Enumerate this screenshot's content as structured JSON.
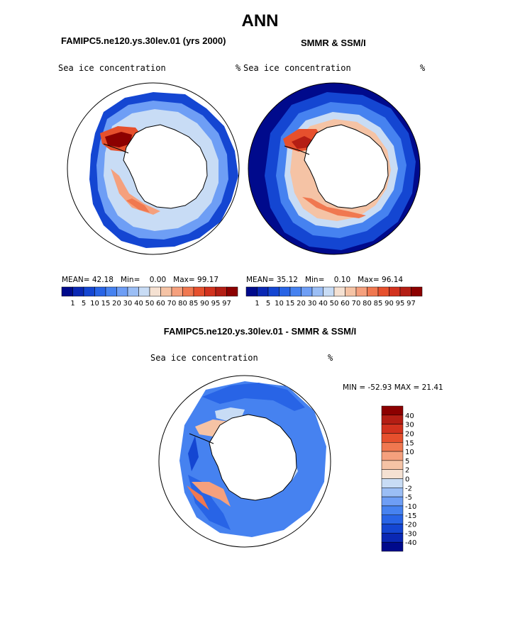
{
  "page": {
    "title": "ANN"
  },
  "panels": [
    {
      "heading": "FAMIPC5.ne120.ys.30lev.01 (yrs 2000)",
      "variable": "Sea ice concentration",
      "units": "%",
      "stats": {
        "mean_label": "MEAN=",
        "mean": "42.18",
        "min_label": "Min=",
        "min": "0.00",
        "max_label": "Max=",
        "max": "99.17"
      }
    },
    {
      "heading": "SMMR & SSM/I",
      "variable": "Sea ice concentration",
      "units": "%",
      "stats": {
        "mean_label": "MEAN=",
        "mean": "35.12",
        "min_label": "Min=",
        "min": "0.10",
        "max_label": "Max=",
        "max": "96.14"
      }
    }
  ],
  "top_colorbar": {
    "labels": [
      "1",
      "5",
      "10",
      "15",
      "20",
      "30",
      "40",
      "50",
      "60",
      "70",
      "80",
      "85",
      "90",
      "95",
      "97"
    ],
    "colors": [
      "#000a8c",
      "#0a28b4",
      "#1446d2",
      "#2864e6",
      "#4682f0",
      "#6e9ef5",
      "#9bbef5",
      "#c8dcf5",
      "#f5e1d2",
      "#f5c3a5",
      "#f5a07d",
      "#f07850",
      "#e6502d",
      "#d2321e",
      "#b41e14",
      "#8c0000"
    ]
  },
  "difference": {
    "heading": "FAMIPC5.ne120.ys.30lev.01 - SMMR & SSM/I",
    "variable": "Sea ice concentration",
    "units": "%",
    "minmax": {
      "min_label": "MIN =",
      "min": "-52.93",
      "max_label": "MAX =",
      "max": "21.41"
    }
  },
  "diff_colorbar": {
    "labels": [
      "40",
      "30",
      "20",
      "15",
      "10",
      "5",
      "2",
      "0",
      "-2",
      "-5",
      "-10",
      "-15",
      "-20",
      "-30",
      "-40"
    ],
    "colors": [
      "#8c0000",
      "#b41e14",
      "#d2321e",
      "#e6502d",
      "#f07850",
      "#f5a07d",
      "#f5c3a5",
      "#f5e1d2",
      "#c8dcf5",
      "#9bbef5",
      "#6e9ef5",
      "#4682f0",
      "#2864e6",
      "#1446d2",
      "#0a28b4",
      "#000a8c"
    ]
  }
}
